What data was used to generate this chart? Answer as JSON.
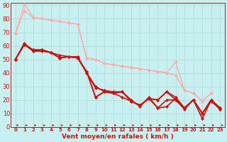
{
  "xlabel": "Vent moyen/en rafales ( km/h )",
  "background_color": "#c8f0f0",
  "grid_color": "#b0dede",
  "xlim": [
    -0.5,
    23.5
  ],
  "ylim": [
    0,
    92
  ],
  "yticks": [
    0,
    10,
    20,
    30,
    40,
    50,
    60,
    70,
    80,
    90
  ],
  "xticks": [
    0,
    1,
    2,
    3,
    4,
    5,
    6,
    7,
    8,
    9,
    10,
    11,
    12,
    13,
    14,
    15,
    16,
    17,
    18,
    19,
    20,
    21,
    22,
    23
  ],
  "series": [
    {
      "x": [
        0,
        1,
        2,
        3,
        4,
        5,
        6,
        7,
        8,
        9,
        10,
        11,
        12,
        13,
        14,
        15,
        16,
        17,
        18,
        19,
        20,
        21,
        22
      ],
      "y": [
        69,
        86,
        81,
        80,
        79,
        78,
        77,
        76,
        51,
        50,
        47,
        46,
        45,
        44,
        43,
        42,
        41,
        40,
        48,
        27,
        25,
        19,
        25
      ],
      "color": "#ffaaaa",
      "lw": 1.0
    },
    {
      "x": [
        0,
        1,
        2,
        3,
        4,
        5,
        6,
        7,
        8,
        9,
        10,
        11,
        12,
        13,
        14,
        15,
        16,
        17,
        18,
        19,
        20,
        21,
        22
      ],
      "y": [
        69,
        91,
        81,
        80,
        79,
        78,
        77,
        76,
        51,
        50,
        47,
        46,
        45,
        44,
        43,
        42,
        41,
        40,
        38,
        27,
        25,
        19,
        25
      ],
      "color": "#ffaaaa",
      "lw": 1.0
    },
    {
      "x": [
        0,
        1,
        2,
        3,
        4,
        5,
        6,
        7,
        8,
        9,
        10,
        11,
        12,
        13,
        14,
        15,
        16,
        17,
        18,
        19,
        20,
        21,
        22,
        23
      ],
      "y": [
        50,
        62,
        56,
        56,
        55,
        53,
        52,
        52,
        40,
        29,
        27,
        26,
        26,
        20,
        15,
        22,
        14,
        15,
        21,
        14,
        20,
        6,
        20,
        13
      ],
      "color": "#cc1111",
      "lw": 1.2
    },
    {
      "x": [
        0,
        1,
        2,
        3,
        4,
        5,
        6,
        7,
        8,
        9,
        10,
        11,
        12,
        13,
        14,
        15,
        16,
        17,
        18,
        19,
        20,
        21,
        22,
        23
      ],
      "y": [
        50,
        61,
        56,
        57,
        55,
        51,
        52,
        51,
        40,
        30,
        26,
        25,
        22,
        19,
        16,
        21,
        14,
        20,
        20,
        13,
        20,
        10,
        19,
        13
      ],
      "color": "#cc1111",
      "lw": 1.2
    },
    {
      "x": [
        0,
        1,
        2,
        3,
        4,
        5,
        6,
        7,
        8,
        9,
        10,
        11,
        12,
        13,
        14,
        15,
        16,
        17,
        18,
        19,
        20,
        21,
        22,
        23
      ],
      "y": [
        50,
        61,
        57,
        57,
        55,
        51,
        52,
        51,
        41,
        22,
        26,
        25,
        26,
        19,
        16,
        21,
        20,
        26,
        20,
        14,
        20,
        10,
        20,
        14
      ],
      "color": "#cc1111",
      "lw": 1.2
    },
    {
      "x": [
        0,
        1,
        2,
        3,
        4,
        5,
        6,
        7,
        8,
        9,
        10,
        11,
        12,
        13,
        14,
        15,
        16,
        17,
        18,
        19,
        20,
        21,
        22,
        23
      ],
      "y": [
        50,
        61,
        57,
        57,
        55,
        51,
        52,
        51,
        41,
        22,
        26,
        25,
        26,
        19,
        16,
        21,
        20,
        26,
        22,
        14,
        20,
        10,
        20,
        14
      ],
      "color": "#cc1111",
      "lw": 1.2
    }
  ],
  "arrow_color": "#cc1111",
  "marker_size": 2.5
}
